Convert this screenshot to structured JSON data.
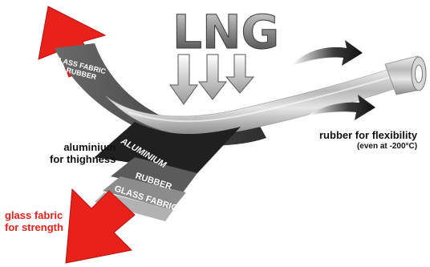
{
  "diagram": {
    "heading": "LNG",
    "top_band_labels": [
      "GLASS FABRIC",
      "RUBBER"
    ],
    "layer_labels": {
      "aluminium": "ALUMINIUM",
      "rubber": "RUBBER",
      "glass_fabric": "GLASS FABRIC"
    },
    "captions": {
      "aluminium": [
        "aluminium",
        "for thighness"
      ],
      "rubber": [
        "rubber for flexibility",
        "(even at -200°C)"
      ],
      "glass_fabric": [
        "glass fabric",
        "for strength"
      ]
    },
    "colors": {
      "red_arrow": "#e8211a",
      "caption_red": "#e8211a",
      "caption_black": "#111111",
      "band_dark": "#3e3e3e",
      "band_mid": "#5b5b5b",
      "band_light": "#8c8c8c",
      "metal": "#c9c9c9"
    },
    "icons": [
      "lng-down-arrow-icon",
      "flow-arrow-icon",
      "red-arrow-icon",
      "hose-roll-icon"
    ]
  }
}
